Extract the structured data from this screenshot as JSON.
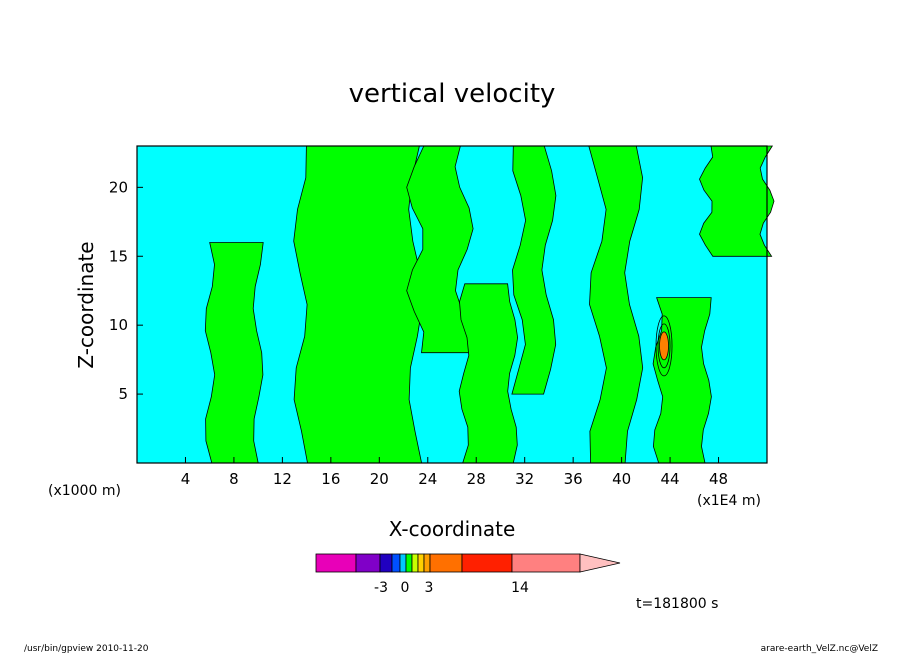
{
  "chart_data": {
    "type": "heatmap",
    "title": "vertical velocity",
    "xlabel": "X-coordinate",
    "ylabel": "Z-coordinate",
    "x_unit_left": "(x1000 m)",
    "x_unit_right": "(x1E4 m)",
    "xlim": [
      0,
      52
    ],
    "ylim": [
      0,
      23
    ],
    "x_ticks": [
      4,
      8,
      12,
      16,
      20,
      24,
      28,
      32,
      36,
      40,
      44,
      48
    ],
    "y_ticks": [
      5,
      10,
      15,
      20
    ],
    "colorbar": {
      "labels": [
        {
          "text": "-3",
          "value": -3
        },
        {
          "text": "0",
          "value": 0
        },
        {
          "text": "3",
          "value": 3
        },
        {
          "text": "14",
          "value": 14
        }
      ],
      "colors": [
        "#e800b8",
        "#8000c8",
        "#2000c0",
        "#0050ff",
        "#00c8ff",
        "#00ff00",
        "#c8ff00",
        "#ffd000",
        "#ffa000",
        "#ff7000",
        "#ff2000",
        "#ff8080",
        "#ffc0c0"
      ]
    },
    "fill_colors": {
      "negative": "#00ffff",
      "positive": "#00ff00",
      "strong": "#ff8000"
    },
    "positive_bands": [
      {
        "x0": 6,
        "x1": 10,
        "z0": 0,
        "z1": 16
      },
      {
        "x0": 13.5,
        "x1": 23,
        "z0": 0,
        "z1": 23
      },
      {
        "x0": 23,
        "x1": 27,
        "z0": 8,
        "z1": 23
      },
      {
        "x0": 27,
        "x1": 31,
        "z0": 0,
        "z1": 13
      },
      {
        "x0": 31.5,
        "x1": 34,
        "z0": 5,
        "z1": 23
      },
      {
        "x0": 38,
        "x1": 41,
        "z0": 0,
        "z1": 23
      },
      {
        "x0": 43,
        "x1": 47,
        "z0": 0,
        "z1": 12
      },
      {
        "x0": 47,
        "x1": 52,
        "z0": 15,
        "z1": 23
      }
    ],
    "time_label": "t=181800 s"
  },
  "footer": {
    "left": "/usr/bin/gpview   2010-11-20",
    "right": "arare-earth_VelZ.nc@VelZ"
  }
}
